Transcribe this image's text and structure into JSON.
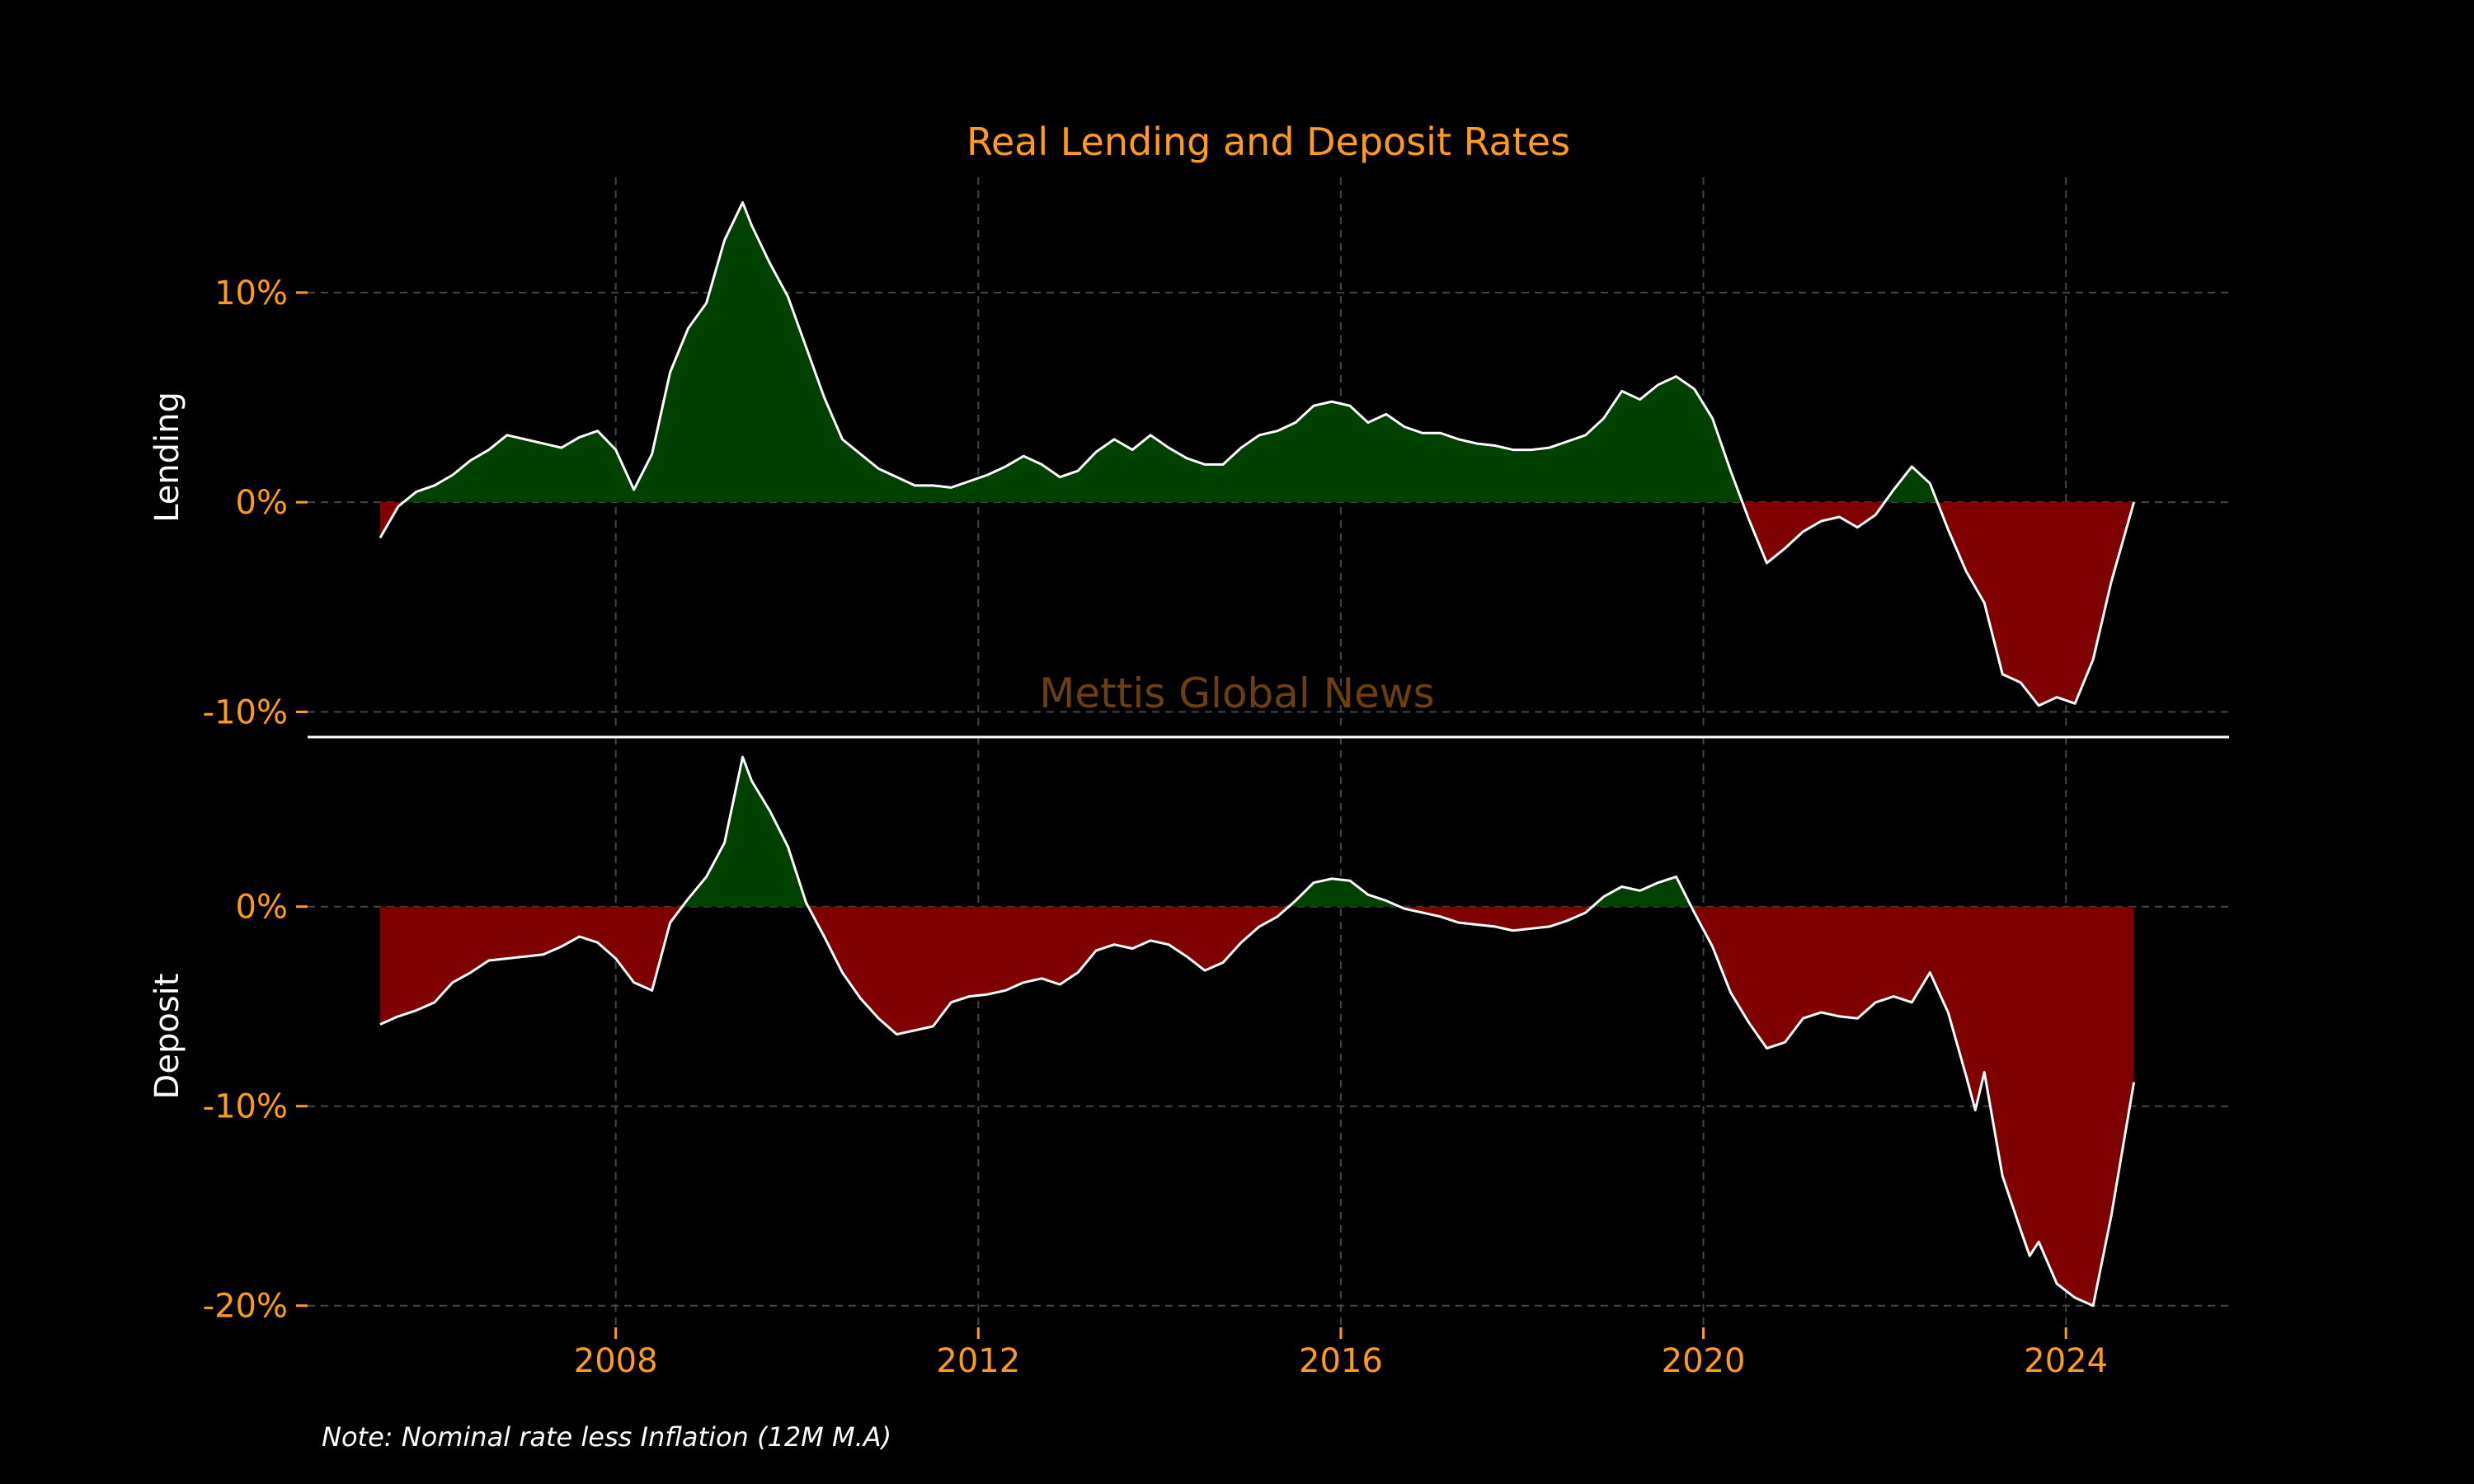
{
  "chart_data": {
    "type": "area",
    "title": "Real Lending and Deposit Rates",
    "note": "Note: Nominal rate less Inflation (12M M.A)",
    "watermark": "Mettis Global News",
    "colors": {
      "background": "#000000",
      "accent": "#ff9b1a",
      "positive_fill": "#004000",
      "negative_fill": "#7f0000",
      "line": "#ffffff",
      "grid": "#444444",
      "watermark": "#6b3f10"
    },
    "grid": true,
    "x_ticks": [
      2008,
      2012,
      2016,
      2020,
      2024
    ],
    "xlim": [
      2004.6,
      2025.8
    ],
    "panels": [
      {
        "name": "Lending",
        "ylabel": "Lending",
        "ylim": [
          -11.2,
          15.5
        ],
        "y_ticks": [
          10,
          0,
          -10
        ],
        "y_tick_labels": [
          "10%",
          "0%",
          "-10%"
        ],
        "x": [
          2005.4,
          2005.6,
          2005.8,
          2006.0,
          2006.2,
          2006.4,
          2006.6,
          2006.8,
          2007.0,
          2007.2,
          2007.4,
          2007.6,
          2007.8,
          2008.0,
          2008.2,
          2008.4,
          2008.6,
          2008.8,
          2009.0,
          2009.2,
          2009.4,
          2009.5,
          2009.7,
          2009.9,
          2010.1,
          2010.3,
          2010.5,
          2010.7,
          2010.9,
          2011.1,
          2011.3,
          2011.5,
          2011.7,
          2011.9,
          2012.1,
          2012.3,
          2012.5,
          2012.7,
          2012.9,
          2013.1,
          2013.3,
          2013.5,
          2013.7,
          2013.9,
          2014.1,
          2014.3,
          2014.5,
          2014.7,
          2014.9,
          2015.1,
          2015.3,
          2015.5,
          2015.7,
          2015.9,
          2016.1,
          2016.3,
          2016.5,
          2016.7,
          2016.9,
          2017.1,
          2017.3,
          2017.5,
          2017.7,
          2017.9,
          2018.1,
          2018.3,
          2018.5,
          2018.7,
          2018.9,
          2019.1,
          2019.3,
          2019.5,
          2019.7,
          2019.9,
          2020.1,
          2020.3,
          2020.5,
          2020.7,
          2020.9,
          2021.1,
          2021.3,
          2021.5,
          2021.7,
          2021.9,
          2022.1,
          2022.3,
          2022.5,
          2022.7,
          2022.9,
          2023.1,
          2023.3,
          2023.5,
          2023.7,
          2023.9,
          2024.1,
          2024.3,
          2024.5,
          2024.75
        ],
        "values": [
          -1.7,
          -0.2,
          0.5,
          0.8,
          1.3,
          2.0,
          2.5,
          3.2,
          3.0,
          2.8,
          2.6,
          3.1,
          3.4,
          2.5,
          0.6,
          2.3,
          6.2,
          8.3,
          9.5,
          12.5,
          14.3,
          13.2,
          11.4,
          9.8,
          7.4,
          5.0,
          3.0,
          2.3,
          1.6,
          1.2,
          0.8,
          0.8,
          0.7,
          1.0,
          1.3,
          1.7,
          2.2,
          1.8,
          1.2,
          1.5,
          2.4,
          3.0,
          2.5,
          3.2,
          2.6,
          2.1,
          1.8,
          1.8,
          2.6,
          3.2,
          3.4,
          3.8,
          4.6,
          4.8,
          4.6,
          3.8,
          4.2,
          3.6,
          3.3,
          3.3,
          3.0,
          2.8,
          2.7,
          2.5,
          2.5,
          2.6,
          2.9,
          3.2,
          4.0,
          5.3,
          4.9,
          5.6,
          6.0,
          5.4,
          4.0,
          1.5,
          -0.8,
          -2.9,
          -2.2,
          -1.4,
          -0.9,
          -0.7,
          -1.2,
          -0.6,
          0.6,
          1.7,
          0.9,
          -1.3,
          -3.3,
          -4.8,
          -8.2,
          -8.6,
          -9.7,
          -9.3,
          -9.6,
          -7.5,
          -3.8,
          0.0
        ]
      },
      {
        "name": "Deposit",
        "ylabel": "Deposit",
        "ylim": [
          -21.5,
          8.5
        ],
        "y_ticks": [
          0,
          -10,
          -20
        ],
        "y_tick_labels": [
          "0%",
          "-10%",
          "-20%"
        ],
        "x": [
          2005.4,
          2005.6,
          2005.8,
          2006.0,
          2006.2,
          2006.4,
          2006.6,
          2006.8,
          2007.0,
          2007.2,
          2007.4,
          2007.6,
          2007.8,
          2008.0,
          2008.2,
          2008.4,
          2008.6,
          2008.8,
          2009.0,
          2009.2,
          2009.4,
          2009.5,
          2009.7,
          2009.9,
          2010.1,
          2010.3,
          2010.5,
          2010.7,
          2010.9,
          2011.1,
          2011.3,
          2011.5,
          2011.7,
          2011.9,
          2012.1,
          2012.3,
          2012.5,
          2012.7,
          2012.9,
          2013.1,
          2013.3,
          2013.5,
          2013.7,
          2013.9,
          2014.1,
          2014.3,
          2014.5,
          2014.7,
          2014.9,
          2015.1,
          2015.3,
          2015.5,
          2015.7,
          2015.9,
          2016.1,
          2016.3,
          2016.5,
          2016.7,
          2016.9,
          2017.1,
          2017.3,
          2017.5,
          2017.7,
          2017.9,
          2018.1,
          2018.3,
          2018.5,
          2018.7,
          2018.9,
          2019.1,
          2019.3,
          2019.5,
          2019.7,
          2019.9,
          2020.1,
          2020.3,
          2020.5,
          2020.7,
          2020.9,
          2021.1,
          2021.3,
          2021.5,
          2021.7,
          2021.9,
          2022.1,
          2022.3,
          2022.5,
          2022.7,
          2022.9,
          2023.0,
          2023.1,
          2023.3,
          2023.5,
          2023.6,
          2023.7,
          2023.9,
          2024.1,
          2024.3,
          2024.5,
          2024.75
        ],
        "values": [
          -5.9,
          -5.5,
          -5.2,
          -4.8,
          -3.8,
          -3.3,
          -2.7,
          -2.6,
          -2.5,
          -2.4,
          -2.0,
          -1.5,
          -1.8,
          -2.6,
          -3.8,
          -4.2,
          -0.8,
          0.4,
          1.5,
          3.2,
          7.5,
          6.3,
          4.8,
          3.0,
          0.2,
          -1.5,
          -3.3,
          -4.6,
          -5.6,
          -6.4,
          -6.2,
          -6.0,
          -4.8,
          -4.5,
          -4.4,
          -4.2,
          -3.8,
          -3.6,
          -3.9,
          -3.3,
          -2.2,
          -1.9,
          -2.1,
          -1.7,
          -1.9,
          -2.5,
          -3.2,
          -2.8,
          -1.8,
          -1.0,
          -0.5,
          0.3,
          1.2,
          1.4,
          1.3,
          0.6,
          0.3,
          -0.1,
          -0.3,
          -0.5,
          -0.8,
          -0.9,
          -1.0,
          -1.2,
          -1.1,
          -1.0,
          -0.7,
          -0.3,
          0.5,
          1.0,
          0.8,
          1.2,
          1.5,
          -0.3,
          -2.0,
          -4.3,
          -5.8,
          -7.1,
          -6.8,
          -5.6,
          -5.3,
          -5.5,
          -5.6,
          -4.8,
          -4.5,
          -4.8,
          -3.3,
          -5.3,
          -8.5,
          -10.2,
          -8.3,
          -13.5,
          -16.2,
          -17.5,
          -16.8,
          -18.9,
          -19.6,
          -20.0,
          -15.5,
          -8.8
        ]
      }
    ]
  }
}
